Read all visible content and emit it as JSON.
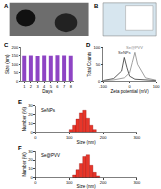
{
  "panels": [
    {
      "label": "A"
    },
    {
      "label": "B"
    }
  ],
  "chart_data": [
    {
      "label": "C",
      "type": "bar",
      "x_label": "Days",
      "y_label": "Size (nm)",
      "categories": [
        "1",
        "2",
        "3",
        "4",
        "5",
        "6",
        "7",
        "8"
      ],
      "values": [
        150,
        152,
        149,
        151,
        150,
        153,
        152,
        150
      ],
      "color": "#8e44c4",
      "ylim": [
        0,
        200
      ],
      "yticks": [
        0,
        50,
        100,
        150,
        200
      ],
      "grid": false
    },
    {
      "label": "D",
      "type": "line",
      "x_label": "Zeta potential (mV)",
      "y_label": "Total Counts",
      "xlim": [
        -100,
        100
      ],
      "xticks": [
        -100,
        0,
        100
      ],
      "ylim": [
        0,
        100
      ],
      "yticks": [
        0,
        50,
        100
      ],
      "grid": false,
      "series": [
        {
          "name": "SeNPs",
          "color": "#333333",
          "x": [
            -100,
            -60,
            -30,
            -20,
            -10,
            0,
            20,
            60,
            100
          ],
          "values": [
            2,
            8,
            30,
            70,
            40,
            15,
            6,
            3,
            2
          ]
        },
        {
          "name": "Se@PVV",
          "color": "#888888",
          "x": [
            -100,
            -60,
            -20,
            0,
            10,
            20,
            30,
            60,
            100
          ],
          "values": [
            2,
            4,
            10,
            25,
            55,
            85,
            50,
            10,
            3
          ]
        }
      ]
    },
    {
      "label": "E",
      "type": "histogram",
      "title": "SeNPs",
      "x_label": "Size (nm)",
      "y_label": "Number (%)",
      "bins": [
        100,
        110,
        120,
        130,
        140,
        150,
        160,
        170,
        180
      ],
      "counts": [
        3,
        8,
        15,
        22,
        25,
        16,
        8,
        3
      ],
      "color": "#e8362a",
      "xlim": [
        0,
        300
      ],
      "xticks": [
        0,
        100,
        200,
        300
      ],
      "ylim": [
        0,
        30
      ],
      "yticks": [
        0,
        10,
        20,
        30
      ]
    },
    {
      "label": "F",
      "type": "histogram",
      "title": "Se@PVV",
      "x_label": "Size (nm)",
      "y_label": "Number (%)",
      "bins": [
        110,
        120,
        130,
        140,
        150,
        160,
        170,
        180,
        190
      ],
      "counts": [
        3,
        9,
        16,
        24,
        26,
        14,
        6,
        2
      ],
      "color": "#e8362a",
      "xlim": [
        0,
        300
      ],
      "xticks": [
        0,
        100,
        200,
        300
      ],
      "ylim": [
        0,
        30
      ],
      "yticks": [
        0,
        10,
        20,
        30
      ]
    }
  ]
}
